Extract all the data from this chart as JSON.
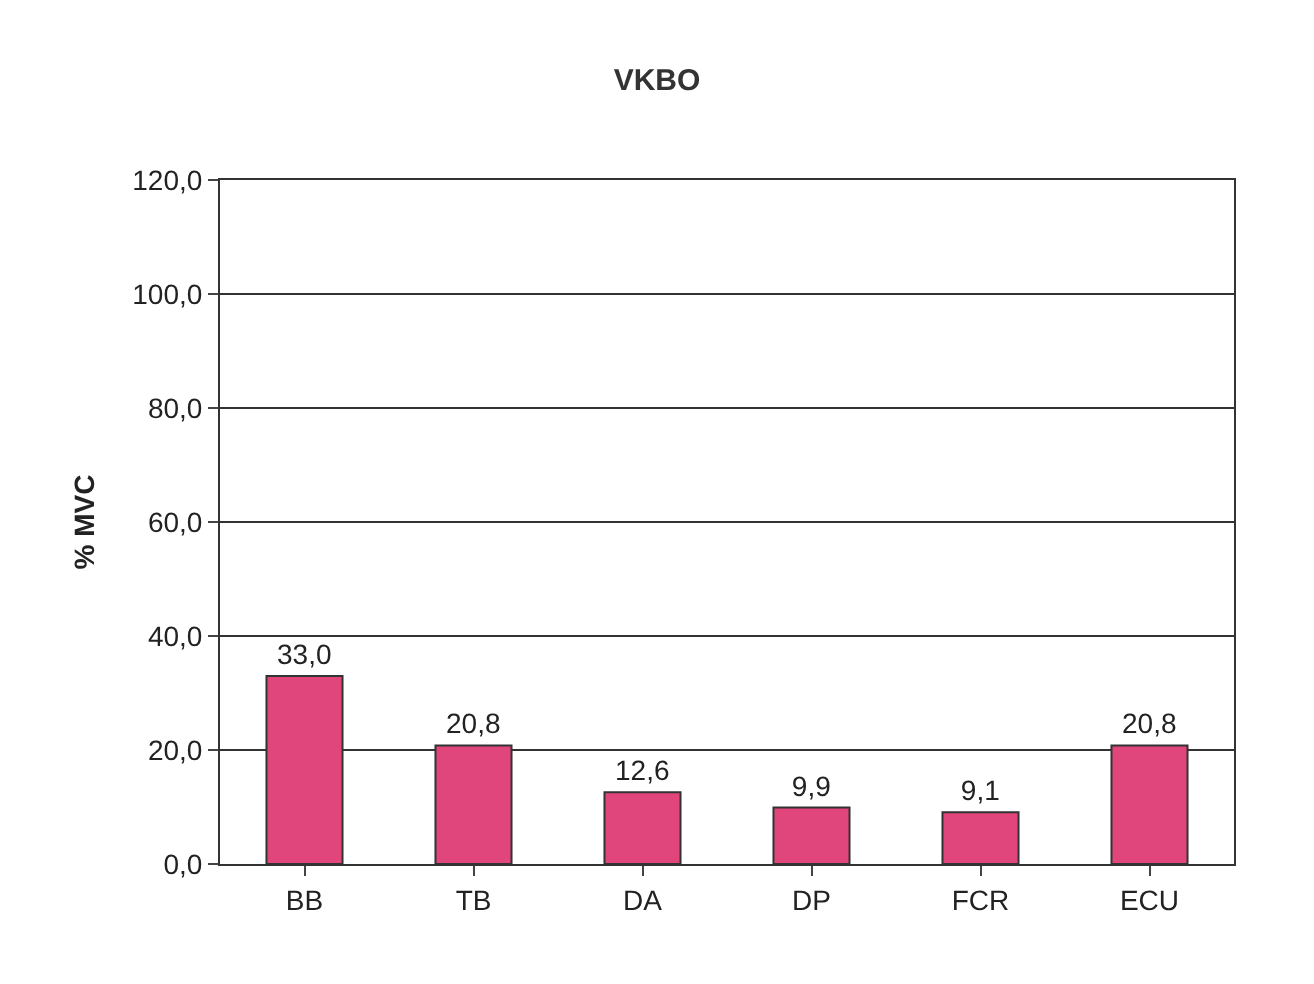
{
  "chart_data": {
    "type": "bar",
    "title": "VKBO",
    "ylabel": "% MVC",
    "categories": [
      "BB",
      "TB",
      "DA",
      "DP",
      "FCR",
      "ECU"
    ],
    "values": [
      33.0,
      20.8,
      12.6,
      9.9,
      9.1,
      20.8
    ],
    "value_labels": [
      "33,0",
      "20,8",
      "12,6",
      "9,9",
      "9,1",
      "20,8"
    ],
    "color": "#e0457b",
    "ylim": [
      0,
      120
    ],
    "yticks": [
      {
        "value": 0,
        "label": "0,0"
      },
      {
        "value": 20,
        "label": "20,0"
      },
      {
        "value": 40,
        "label": "40,0"
      },
      {
        "value": 60,
        "label": "60,0"
      },
      {
        "value": 80,
        "label": "80,0"
      },
      {
        "value": 100,
        "label": "100,0"
      },
      {
        "value": 120,
        "label": "120,0"
      }
    ],
    "grid": "y",
    "legend": false
  }
}
